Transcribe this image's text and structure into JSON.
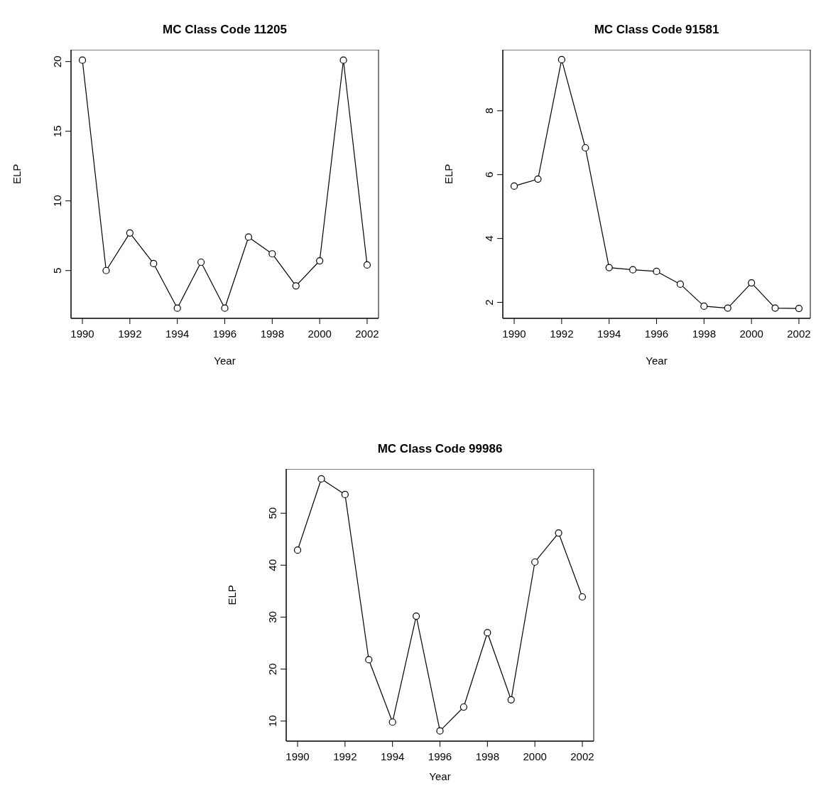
{
  "chart_data": [
    {
      "type": "line",
      "title": "MC Class Code 11205",
      "xlabel": "Year",
      "ylabel": "ELP",
      "x": [
        1990,
        1991,
        1992,
        1993,
        1994,
        1995,
        1996,
        1997,
        1998,
        1999,
        2000,
        2001,
        2002
      ],
      "values": [
        20.1,
        5.0,
        7.7,
        5.5,
        2.3,
        5.6,
        2.3,
        7.4,
        6.2,
        3.9,
        5.7,
        20.1,
        5.4
      ],
      "color": "#000000",
      "marker": "circle",
      "xlim": [
        1989.52,
        2002.48
      ],
      "ylim": [
        1.57,
        20.85
      ],
      "xticks": [
        1990,
        1992,
        1994,
        1996,
        1998,
        2000,
        2002
      ],
      "yticks": [
        5,
        10,
        15,
        20
      ]
    },
    {
      "type": "line",
      "title": "MC Class Code 91581",
      "xlabel": "Year",
      "ylabel": "ELP",
      "x": [
        1990,
        1991,
        1992,
        1993,
        1994,
        1995,
        1996,
        1997,
        1998,
        1999,
        2000,
        2001,
        2002
      ],
      "values": [
        5.64,
        5.86,
        9.6,
        6.84,
        3.09,
        3.02,
        2.97,
        2.57,
        1.88,
        1.82,
        2.61,
        1.82,
        1.81
      ],
      "color": "#000000",
      "marker": "circle",
      "xlim": [
        1989.52,
        2002.48
      ],
      "ylim": [
        1.5,
        9.91
      ],
      "xticks": [
        1990,
        1992,
        1994,
        1996,
        1998,
        2000,
        2002
      ],
      "yticks": [
        2,
        4,
        6,
        8
      ]
    },
    {
      "type": "line",
      "title": "MC Class Code 99986",
      "xlabel": "Year",
      "ylabel": "ELP",
      "x": [
        1990,
        1991,
        1992,
        1993,
        1994,
        1995,
        1996,
        1997,
        1998,
        1999,
        2000,
        2001,
        2002
      ],
      "values": [
        42.9,
        56.6,
        53.6,
        21.8,
        9.8,
        30.2,
        8.1,
        12.7,
        27.0,
        14.1,
        40.6,
        46.2,
        33.9
      ],
      "color": "#000000",
      "marker": "circle",
      "xlim": [
        1989.52,
        2002.48
      ],
      "ylim": [
        6.14,
        58.51
      ],
      "xticks": [
        1990,
        1992,
        1994,
        1996,
        1998,
        2000,
        2002
      ],
      "yticks": [
        10,
        20,
        30,
        40,
        50
      ]
    }
  ]
}
